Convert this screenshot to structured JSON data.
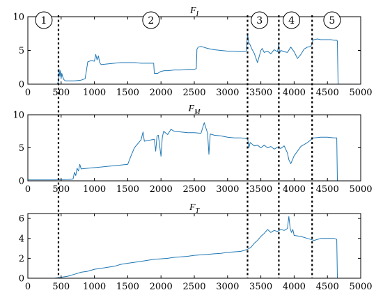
{
  "chart_data": [
    {
      "type": "line",
      "title": "F_I",
      "title_main": "F",
      "title_sub": "I",
      "xlim": [
        0,
        5000
      ],
      "ylim": [
        0,
        10
      ],
      "xticks": [
        0,
        500,
        1000,
        1500,
        2000,
        2500,
        3000,
        3500,
        4000,
        4500,
        5000
      ],
      "xtick_labels": [
        "0",
        "500",
        "1000",
        "1500",
        "2000",
        "2500",
        "3000",
        "3500",
        "4000",
        "4500",
        "5000"
      ],
      "yticks": [
        0,
        5,
        10
      ],
      "ytick_labels": [
        "0",
        "5",
        "10"
      ],
      "color": "#1f77b4",
      "series": [
        {
          "x": [
            0,
            440,
            460,
            470,
            480,
            490,
            500,
            510,
            520,
            540,
            560,
            600,
            700,
            800,
            860,
            880,
            900,
            950,
            1000,
            1020,
            1040,
            1060,
            1080,
            1100,
            1200,
            1300,
            1400,
            1500,
            1600,
            1700,
            1800,
            1890,
            1900,
            1950,
            2000,
            2050,
            2100,
            2200,
            2300,
            2400,
            2500,
            2530,
            2540,
            2560,
            2600,
            2700,
            2800,
            2900,
            3000,
            3100,
            3200,
            3280,
            3300,
            3320,
            3340,
            3360,
            3400,
            3450,
            3500,
            3520,
            3550,
            3600,
            3650,
            3700,
            3750,
            3770,
            3780,
            3800,
            3850,
            3900,
            3950,
            4000,
            4050,
            4100,
            4150,
            4200,
            4250,
            4270,
            4280,
            4300,
            4350,
            4400,
            4450,
            4500,
            4550,
            4600,
            4640,
            4650,
            4660,
            4670
          ],
          "y": [
            0,
            0,
            0.4,
            2.2,
            1.2,
            2.0,
            0.8,
            1.6,
            1.2,
            0.7,
            0.5,
            0.5,
            0.5,
            0.6,
            0.8,
            2.0,
            3.3,
            3.5,
            3.4,
            4.4,
            3.6,
            4.2,
            3.2,
            2.9,
            3.0,
            3.1,
            3.2,
            3.2,
            3.2,
            3.1,
            3.1,
            3.1,
            1.6,
            1.6,
            1.9,
            2.0,
            2.0,
            2.1,
            2.1,
            2.2,
            2.2,
            2.3,
            5.2,
            5.5,
            5.6,
            5.3,
            5.1,
            5.0,
            4.9,
            4.9,
            4.8,
            4.9,
            7.4,
            6.1,
            5.8,
            5.3,
            4.6,
            3.2,
            5.0,
            5.3,
            4.7,
            4.9,
            4.5,
            5.1,
            4.8,
            5.9,
            4.6,
            5.0,
            4.8,
            4.7,
            5.5,
            4.8,
            3.8,
            4.4,
            5.2,
            5.5,
            5.6,
            6.0,
            6.5,
            6.6,
            6.7,
            6.6,
            6.6,
            6.6,
            6.6,
            6.5,
            6.5,
            6.4,
            0,
            0
          ]
        }
      ]
    },
    {
      "type": "line",
      "title": "F_M",
      "title_main": "F",
      "title_sub": "M",
      "xlim": [
        0,
        5000
      ],
      "ylim": [
        0,
        10
      ],
      "xticks": [
        0,
        500,
        1000,
        1500,
        2000,
        2500,
        3000,
        3500,
        4000,
        4500,
        5000
      ],
      "xtick_labels": [
        "0",
        "500",
        "1000",
        "1500",
        "2000",
        "2500",
        "3000",
        "3500",
        "4000",
        "4500",
        "5000"
      ],
      "yticks": [
        0,
        5,
        10
      ],
      "ytick_labels": [
        "0",
        "5",
        "10"
      ],
      "color": "#1f77b4",
      "series": [
        {
          "x": [
            0,
            400,
            600,
            680,
            700,
            720,
            740,
            760,
            780,
            800,
            900,
            1000,
            1100,
            1200,
            1300,
            1400,
            1500,
            1550,
            1600,
            1650,
            1700,
            1730,
            1750,
            1800,
            1850,
            1900,
            1920,
            1940,
            1960,
            2000,
            2020,
            2040,
            2100,
            2150,
            2200,
            2300,
            2400,
            2500,
            2600,
            2650,
            2700,
            2720,
            2740,
            2800,
            2900,
            3000,
            3100,
            3200,
            3280,
            3300,
            3320,
            3340,
            3400,
            3450,
            3500,
            3550,
            3600,
            3650,
            3700,
            3750,
            3800,
            3850,
            3900,
            3920,
            3950,
            4000,
            4050,
            4100,
            4150,
            4200,
            4250,
            4280,
            4300,
            4400,
            4500,
            4600,
            4640,
            4650,
            4660,
            4670
          ],
          "y": [
            0.15,
            0.15,
            0.2,
            0.3,
            1.3,
            0.8,
            1.9,
            1.5,
            2.5,
            1.8,
            1.9,
            2.0,
            2.1,
            2.2,
            2.3,
            2.4,
            2.5,
            3.8,
            5.0,
            5.6,
            6.2,
            7.4,
            6.0,
            6.1,
            6.2,
            6.3,
            4.5,
            6.8,
            6.9,
            3.7,
            6.6,
            7.5,
            7.0,
            7.8,
            7.5,
            7.4,
            7.3,
            7.3,
            7.2,
            8.8,
            7.2,
            4.0,
            7.1,
            6.9,
            6.8,
            6.6,
            6.5,
            6.5,
            6.4,
            6.5,
            5.0,
            5.8,
            5.3,
            5.4,
            5.0,
            5.4,
            5.0,
            5.2,
            4.8,
            5.1,
            4.9,
            5.3,
            4.2,
            3.2,
            2.6,
            3.8,
            4.5,
            5.2,
            5.5,
            5.8,
            6.2,
            6.5,
            6.5,
            6.6,
            6.6,
            6.5,
            6.5,
            0,
            0,
            0
          ]
        }
      ]
    },
    {
      "type": "line",
      "title": "F_T",
      "title_main": "F",
      "title_sub": "T",
      "xlim": [
        0,
        5000
      ],
      "ylim": [
        0,
        6.5
      ],
      "xticks": [
        0,
        500,
        1000,
        1500,
        2000,
        2500,
        3000,
        3500,
        4000,
        4500,
        5000
      ],
      "xtick_labels": [
        "0",
        "500",
        "1000",
        "1500",
        "2000",
        "2500",
        "3000",
        "3500",
        "4000",
        "4500",
        "5000"
      ],
      "yticks": [
        0,
        2,
        4,
        6
      ],
      "ytick_labels": [
        "0",
        "2",
        "4",
        "6"
      ],
      "color": "#1f77b4",
      "series": [
        {
          "x": [
            0,
            400,
            500,
            600,
            700,
            800,
            900,
            1000,
            1100,
            1200,
            1300,
            1400,
            1500,
            1600,
            1700,
            1800,
            1900,
            2000,
            2100,
            2200,
            2300,
            2400,
            2500,
            2600,
            2700,
            2800,
            2900,
            3000,
            3100,
            3200,
            3300,
            3350,
            3400,
            3450,
            3500,
            3550,
            3600,
            3650,
            3700,
            3750,
            3800,
            3850,
            3900,
            3920,
            3940,
            3960,
            3980,
            4000,
            4100,
            4200,
            4250,
            4300,
            4400,
            4500,
            4600,
            4640,
            4650,
            4660,
            4670
          ],
          "y": [
            0,
            0,
            0.1,
            0.2,
            0.4,
            0.6,
            0.7,
            0.9,
            1.0,
            1.1,
            1.2,
            1.4,
            1.5,
            1.6,
            1.7,
            1.8,
            1.9,
            1.95,
            2.0,
            2.1,
            2.15,
            2.2,
            2.3,
            2.35,
            2.4,
            2.45,
            2.5,
            2.6,
            2.65,
            2.7,
            2.9,
            3.1,
            3.5,
            3.8,
            4.2,
            4.5,
            4.9,
            4.6,
            4.8,
            4.7,
            4.9,
            4.8,
            5.0,
            6.2,
            5.0,
            4.6,
            4.9,
            4.3,
            4.2,
            4.0,
            3.9,
            3.8,
            4.0,
            4.0,
            4.0,
            3.9,
            0,
            0,
            0
          ]
        }
      ]
    }
  ],
  "phase_labels": [
    "1",
    "2",
    "3",
    "4",
    "5"
  ],
  "phase_label_x": [
    240,
    1850,
    3480,
    3960,
    4570
  ],
  "separators_x": [
    460,
    3300,
    3770,
    4270
  ]
}
